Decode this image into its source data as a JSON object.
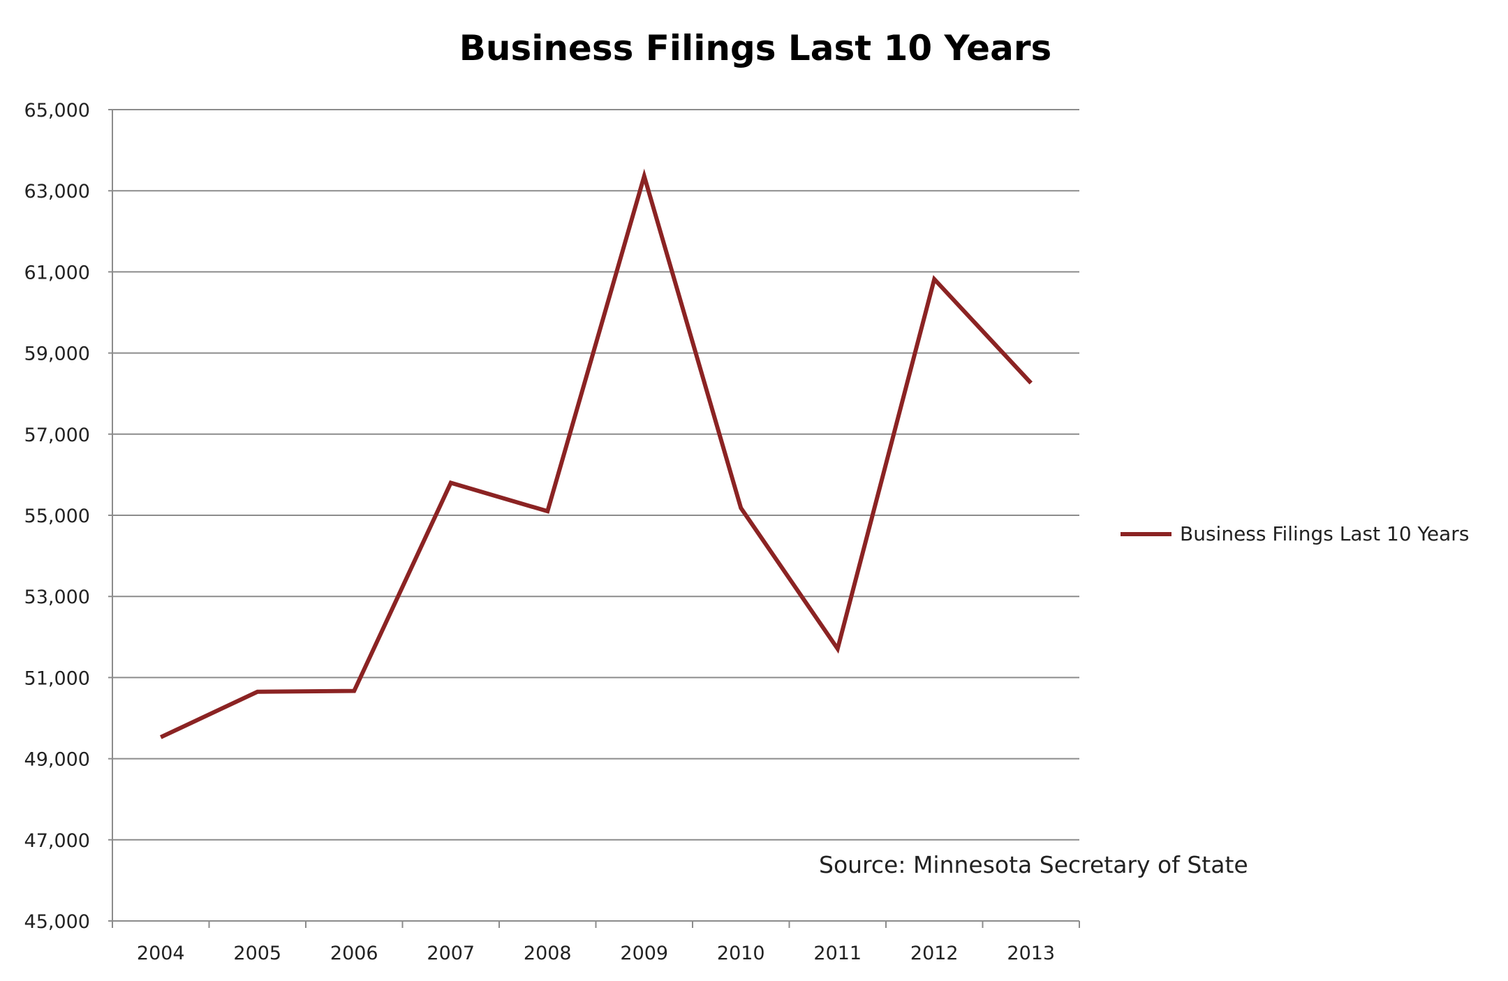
{
  "chart_data": {
    "type": "line",
    "title": "Business Filings Last 10 Years",
    "xlabel": "",
    "ylabel": "",
    "categories": [
      "2004",
      "2005",
      "2006",
      "2007",
      "2008",
      "2009",
      "2010",
      "2011",
      "2012",
      "2013"
    ],
    "series": [
      {
        "name": "Business Filings Last 10 Years",
        "color": "#8b2323",
        "values": [
          49530,
          50650,
          50670,
          55800,
          55100,
          63360,
          55180,
          51710,
          60820,
          58260
        ]
      }
    ],
    "ylim": [
      45000,
      65000
    ],
    "yticks": [
      45000,
      47000,
      49000,
      51000,
      53000,
      55000,
      57000,
      59000,
      61000,
      63000,
      65000
    ],
    "ytick_labels": [
      "45,000",
      "47,000",
      "49,000",
      "51,000",
      "53,000",
      "55,000",
      "57,000",
      "59,000",
      "61,000",
      "63,000",
      "65,000"
    ],
    "grid": true,
    "legend": "right",
    "annotation": "Source: Minnesota Secretary of State"
  }
}
